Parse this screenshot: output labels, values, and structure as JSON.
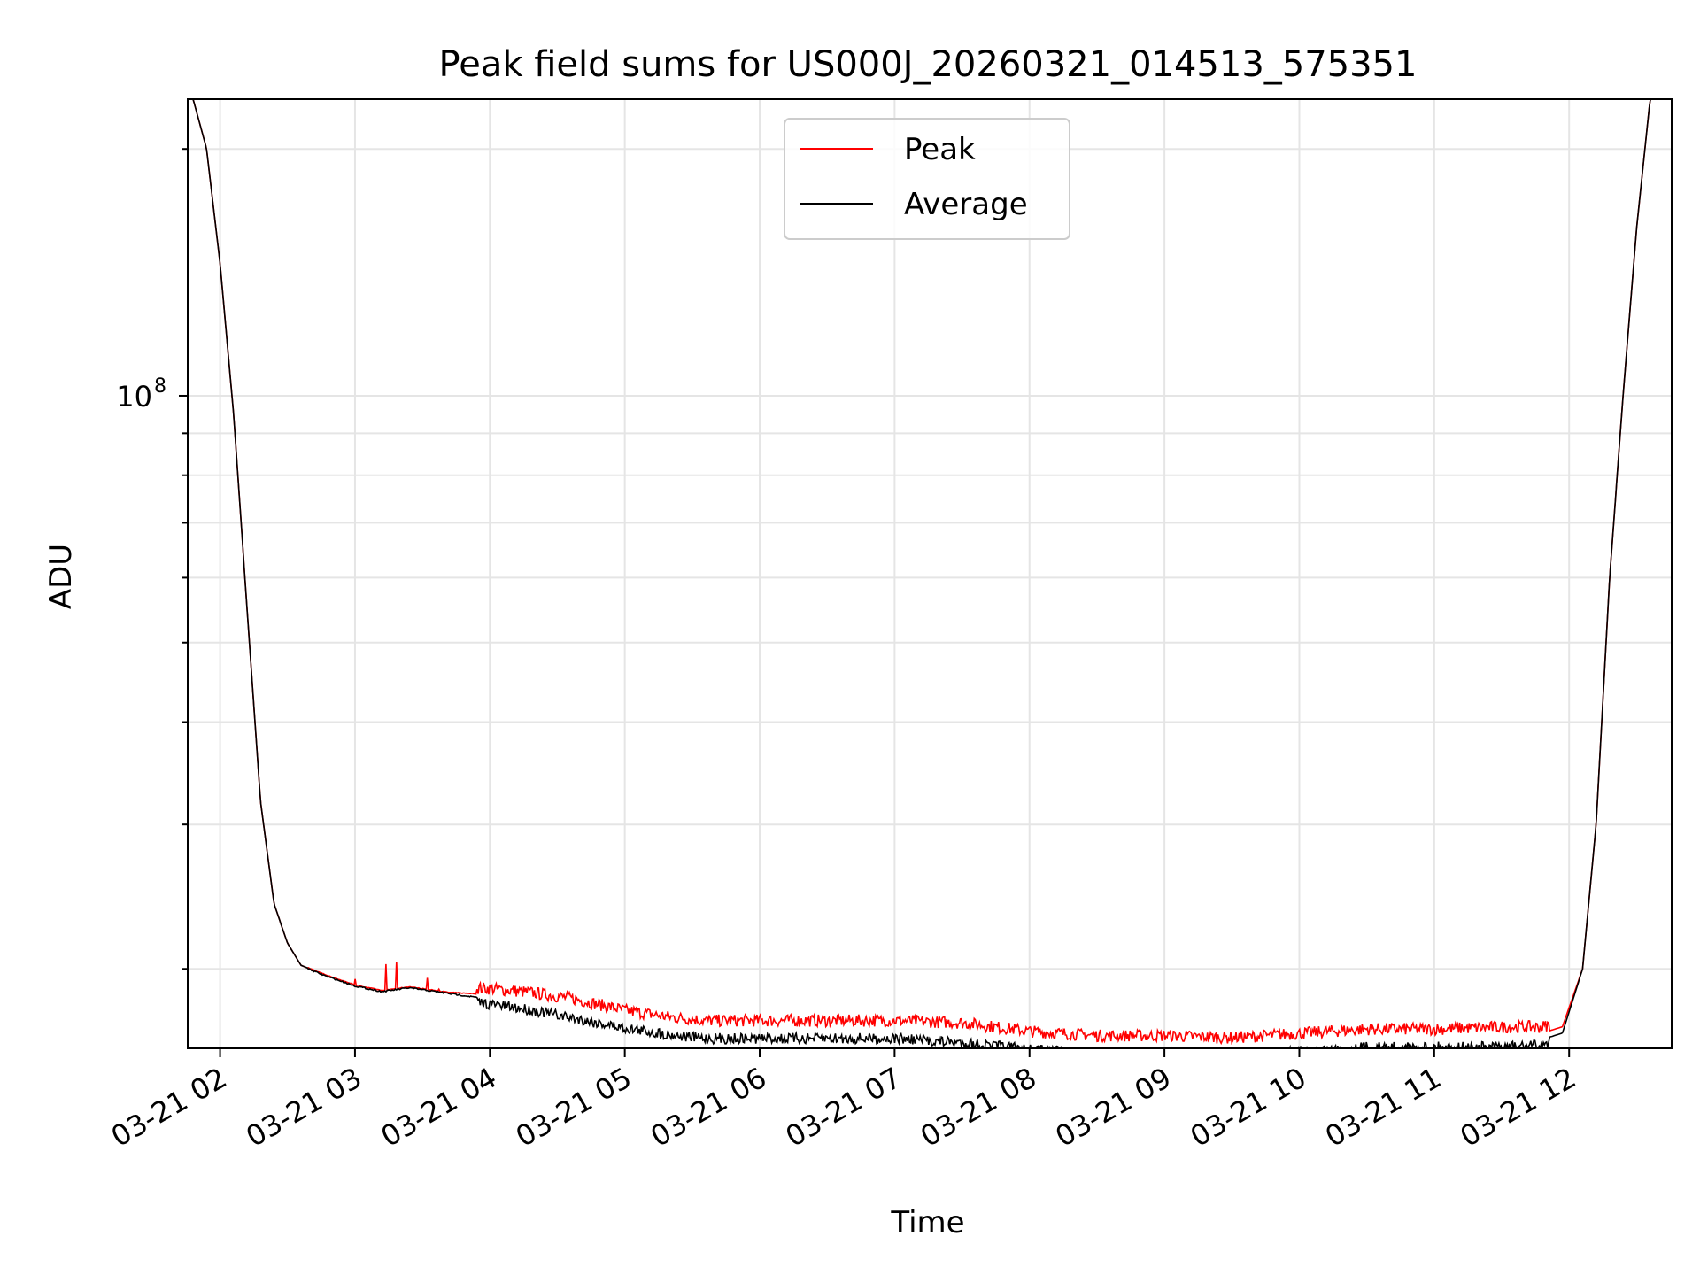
{
  "chart_data": {
    "type": "line",
    "title": "Peak field sums for US000J_20260321_014513_575351",
    "xlabel": "Time",
    "ylabel": "ADU",
    "yscale": "log",
    "ylim": [
      16000000,
      230000000
    ],
    "xlim": [
      1.76,
      12.76
    ],
    "grid": true,
    "legend_position": "top-center",
    "x_ticks": [
      {
        "value": 2,
        "label": "03-21 02"
      },
      {
        "value": 3,
        "label": "03-21 03"
      },
      {
        "value": 4,
        "label": "03-21 04"
      },
      {
        "value": 5,
        "label": "03-21 05"
      },
      {
        "value": 6,
        "label": "03-21 06"
      },
      {
        "value": 7,
        "label": "03-21 07"
      },
      {
        "value": 8,
        "label": "03-21 08"
      },
      {
        "value": 9,
        "label": "03-21 09"
      },
      {
        "value": 10,
        "label": "03-21 10"
      },
      {
        "value": 11,
        "label": "03-21 11"
      },
      {
        "value": 12,
        "label": "03-21 12"
      }
    ],
    "y_major_ticks": [
      {
        "value": 100000000,
        "base": "10",
        "exp": "8"
      }
    ],
    "y_minor_ticks": [
      20000000,
      30000000,
      40000000,
      50000000,
      60000000,
      70000000,
      80000000,
      90000000,
      200000000
    ],
    "series": [
      {
        "name": "Peak",
        "color": "#ff0000",
        "x": [
          1.76,
          1.8,
          1.9,
          2.0,
          2.1,
          2.2,
          2.3,
          2.4,
          2.5,
          2.6,
          2.8,
          3.0,
          3.2,
          3.4,
          3.5,
          3.7,
          4.0,
          4.3,
          4.6,
          5.0,
          5.3,
          5.6,
          6.0,
          6.5,
          7.0,
          7.5,
          8.0,
          8.5,
          9.0,
          9.5,
          10.0,
          10.5,
          11.0,
          11.5,
          11.8,
          11.95,
          12.1,
          12.2,
          12.3,
          12.4,
          12.5,
          12.6,
          12.76
        ],
        "y": [
          230000000,
          230000000,
          200000000,
          145000000,
          95000000,
          55000000,
          32000000,
          24000000,
          21500000,
          20200000,
          19600000,
          19100000,
          18800000,
          19000000,
          18900000,
          18700000,
          18600000,
          18400000,
          18100000,
          17500000,
          17200000,
          17000000,
          17000000,
          17000000,
          17000000,
          16900000,
          16500000,
          16300000,
          16300000,
          16200000,
          16400000,
          16600000,
          16600000,
          16700000,
          16700000,
          17000000,
          20000000,
          30000000,
          60000000,
          100000000,
          160000000,
          230000000,
          230000000
        ]
      },
      {
        "name": "Average",
        "color": "#000000",
        "x": [
          1.76,
          1.8,
          1.9,
          2.0,
          2.1,
          2.2,
          2.3,
          2.4,
          2.5,
          2.6,
          2.8,
          3.0,
          3.2,
          3.4,
          3.5,
          3.7,
          4.0,
          4.3,
          4.6,
          5.0,
          5.3,
          5.6,
          6.0,
          6.5,
          7.0,
          7.5,
          8.0,
          8.5,
          9.0,
          9.5,
          10.0,
          10.5,
          11.0,
          11.5,
          11.8,
          11.95,
          12.1,
          12.2,
          12.3,
          12.4,
          12.5,
          12.6,
          12.76
        ],
        "y": [
          230000000,
          230000000,
          200000000,
          145000000,
          95000000,
          55000000,
          32000000,
          24000000,
          21500000,
          20200000,
          19600000,
          19100000,
          18800000,
          19000000,
          18900000,
          18700000,
          18400000,
          18100000,
          17700000,
          17200000,
          16900000,
          16700000,
          16700000,
          16700000,
          16700000,
          16500000,
          16200000,
          16000000,
          16000000,
          15900000,
          16100000,
          16300000,
          16300000,
          16300000,
          16400000,
          16700000,
          20000000,
          30000000,
          60000000,
          100000000,
          160000000,
          230000000,
          230000000
        ]
      }
    ]
  }
}
